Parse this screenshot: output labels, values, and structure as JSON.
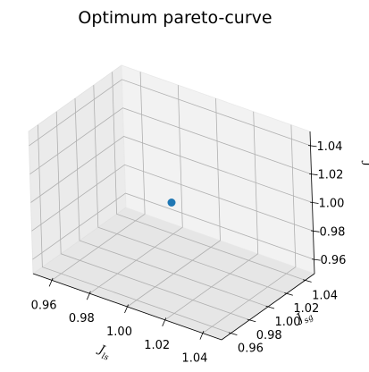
{
  "chart_data": {
    "type": "scatter",
    "title": "Optimum pareto-curve",
    "projection": "3d",
    "xlabel": "J_ls",
    "ylabel": "J_sg",
    "zlabel": "J_",
    "xlim": [
      0.95,
      1.05
    ],
    "ylim": [
      0.95,
      1.05
    ],
    "zlim": [
      0.95,
      1.05
    ],
    "xticks": [
      "0.96",
      "0.98",
      "1.00",
      "1.02",
      "1.04"
    ],
    "yticks": [
      "0.96",
      "0.98",
      "1.00",
      "1.02",
      "1.04"
    ],
    "zticks": [
      "0.96",
      "0.98",
      "1.00",
      "1.02",
      "1.04"
    ],
    "grid": true,
    "points": [
      {
        "x": 1.0,
        "y": 1.0,
        "z": 1.0
      }
    ],
    "colors": {
      "marker": "#1f77b4"
    }
  }
}
